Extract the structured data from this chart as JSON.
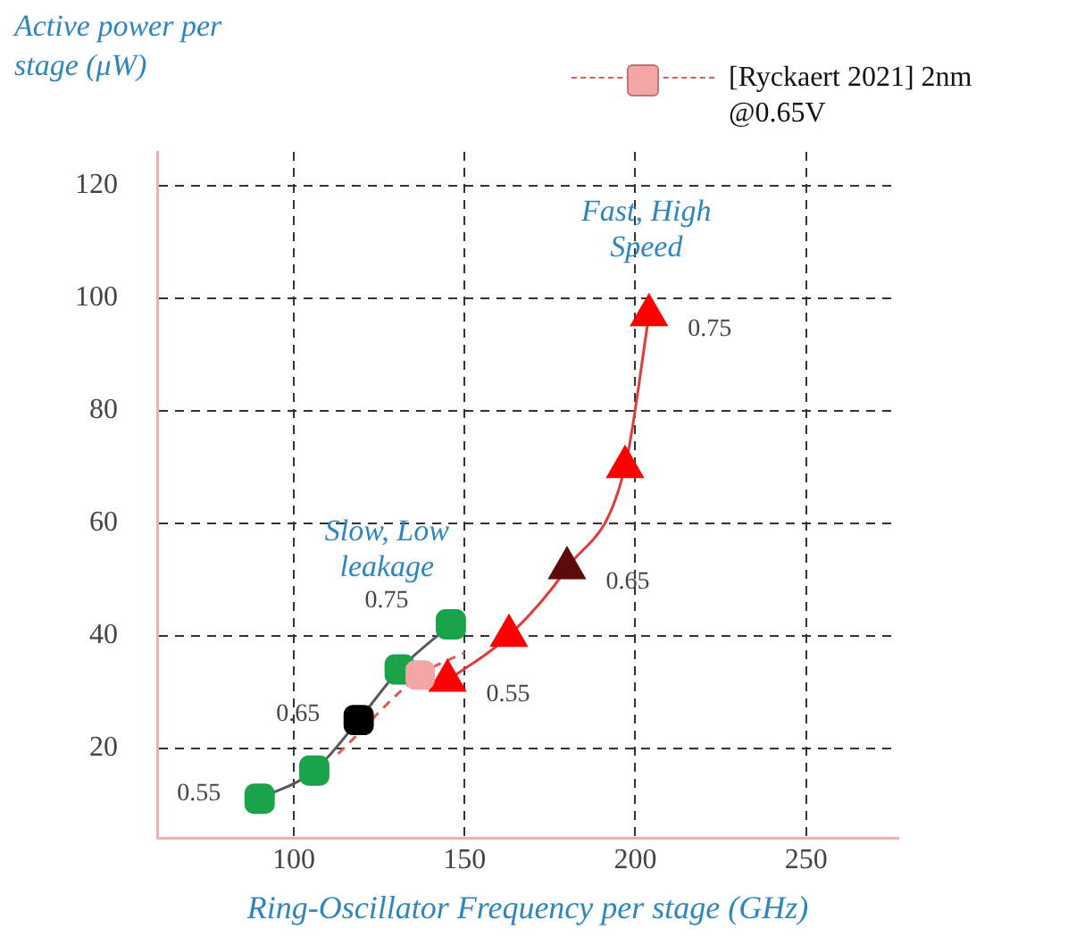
{
  "chart_data": {
    "type": "line",
    "xlabel": "Ring-Oscillator Frequency per stage (GHz)",
    "ylabel": "Active power per stage (μW)",
    "xlim": [
      60,
      277
    ],
    "xticks": [
      100,
      150,
      200,
      250
    ],
    "ylim": [
      4,
      126
    ],
    "yticks": [
      20,
      40,
      60,
      80,
      100,
      120
    ],
    "grid": true,
    "legend": "top right",
    "series": [
      {
        "type": "line",
        "color": "#595959",
        "colors": [
          "#1aa34a",
          "#1aa34a",
          "#000000",
          "#1aa34a",
          "#1aa34a"
        ],
        "marker": "square",
        "x": [
          90,
          106,
          119,
          131,
          146
        ],
        "values": [
          11,
          16,
          25,
          34,
          42
        ]
      },
      {
        "type": "line",
        "color": "#e03a3a",
        "colors": [
          "#ff0000",
          "#ff0000",
          "#5c0a0a",
          "#ff0000",
          "#ff0000"
        ],
        "marker": "triangle",
        "x": [
          145,
          163,
          180,
          197,
          204
        ],
        "values": [
          32,
          40,
          52,
          70,
          97
        ]
      },
      {
        "type": "line",
        "color": "#e05a5a",
        "marker": "none",
        "line_style": "dashed",
        "x": [
          113,
          137,
          150
        ],
        "values": [
          19,
          33,
          37
        ]
      },
      {
        "type": "scatter",
        "name": "[Ryckaert 2021] 2nm @0.65V",
        "color": "#f4a6a6",
        "marker": "square",
        "x": [
          137
        ],
        "values": [
          33
        ]
      }
    ],
    "annotations": [
      "Slow, Low\nleakage",
      "Fast, High\nSpeed",
      {
        "text": "0.55",
        "x": 90,
        "y": 11
      },
      {
        "text": "0.65",
        "x": 119,
        "y": 25
      },
      {
        "text": "0.75",
        "x": 146,
        "y": 42
      },
      {
        "text": "0.55",
        "x": 145,
        "y": 32
      },
      {
        "text": "0.65",
        "x": 180,
        "y": 52
      },
      {
        "text": "0.75",
        "x": 204,
        "y": 97
      }
    ]
  }
}
